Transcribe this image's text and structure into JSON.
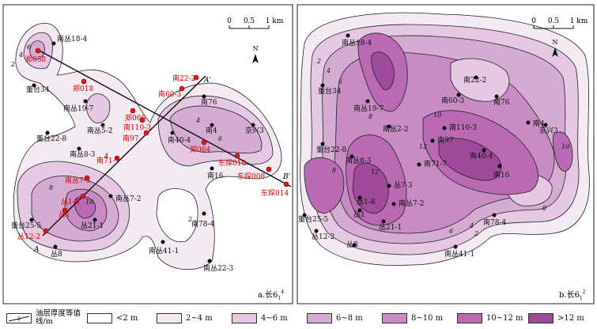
{
  "panel_a": {
    "label": "a.长6",
    "label_sub": "1",
    "label_sup": "4",
    "scale": {
      "t0": "0",
      "t1": "0.5",
      "t2": "1 km"
    },
    "north": "N",
    "section_A": "A",
    "section_A_prime": "A'",
    "section_B_prime": "B'",
    "wells_black": [
      "南丛18-4",
      "董台34",
      "南丛19-7",
      "南丛5-2",
      "南76",
      "南4",
      "京兴3",
      "南40-4",
      "董台22-8",
      "南丛8-3",
      "南16",
      "南丛7-2",
      "丛21-1",
      "南78-4",
      "董台25-5",
      "丛8",
      "南丛41-1",
      "南丛22-3"
    ],
    "wells_red": [
      "郑058",
      "郑018",
      "郑066",
      "南110-3",
      "南97",
      "南60-3",
      "南22-2",
      "郑064",
      "东探010",
      "东探008",
      "东探014",
      "南71-7",
      "南丛7-3",
      "丛1-8",
      "丛1",
      "丛12-2"
    ],
    "contour_labels": [
      "2",
      "4",
      "6",
      "8",
      "10"
    ]
  },
  "panel_b": {
    "label": "b.长6",
    "label_sub": "1",
    "label_sup": "2",
    "scale": {
      "t0": "0",
      "t1": "0.5",
      "t2": "1 km"
    },
    "north": "N",
    "wells": [
      "南丛18-4",
      "董台34",
      "南丛19-7",
      "南60-3",
      "南22-2",
      "南76",
      "南丛2-2",
      "南110-3",
      "南4",
      "京兴3",
      "南97",
      "南40-4",
      "董台22-8",
      "南丛8-3",
      "南71-7",
      "南16",
      "丛1-8",
      "丛7-3",
      "南丛7-2",
      "丛1",
      "丛21-1",
      "董台25-5",
      "南78-4",
      "丛12-2",
      "丛8",
      "南丛41-1"
    ],
    "contour_labels": [
      "2",
      "4",
      "6",
      "8",
      "10",
      "12"
    ]
  },
  "legend": {
    "line_label": "油层厚度等值线/m",
    "line_value": "2",
    "items": [
      {
        "label": "<2 m",
        "color": "#ffffff"
      },
      {
        "label": "2~4 m",
        "color": "#f4eaf3"
      },
      {
        "label": "4~6 m",
        "color": "#e5c9e2"
      },
      {
        "label": "6~8 m",
        "color": "#d6abd2"
      },
      {
        "label": "8~10 m",
        "color": "#c88bc3"
      },
      {
        "label": "10~12 m",
        "color": "#b96ab3"
      },
      {
        "label": ">12 m",
        "color": "#a04a9a"
      }
    ]
  }
}
